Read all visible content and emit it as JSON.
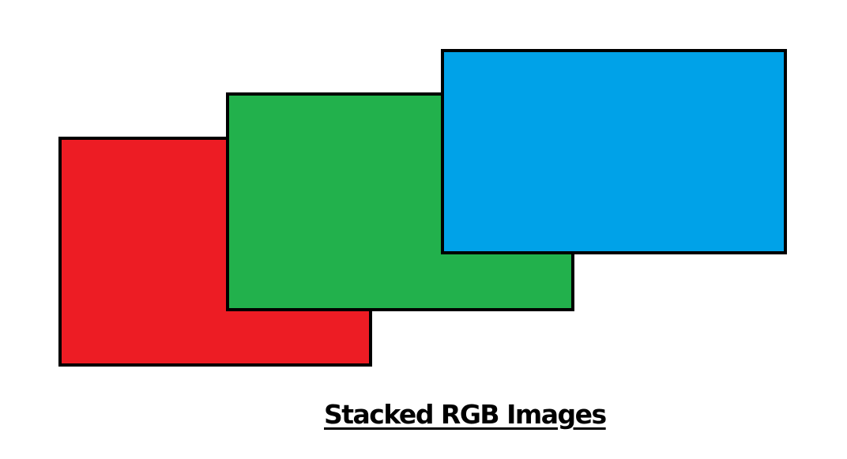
{
  "caption": "Stacked RGB Images",
  "layers": [
    {
      "name": "red",
      "fill": "#ed1c24"
    },
    {
      "name": "green",
      "fill": "#22b14c"
    },
    {
      "name": "blue",
      "fill": "#00a2e8"
    }
  ],
  "colors": {
    "border": "#000000",
    "background": "#ffffff"
  }
}
